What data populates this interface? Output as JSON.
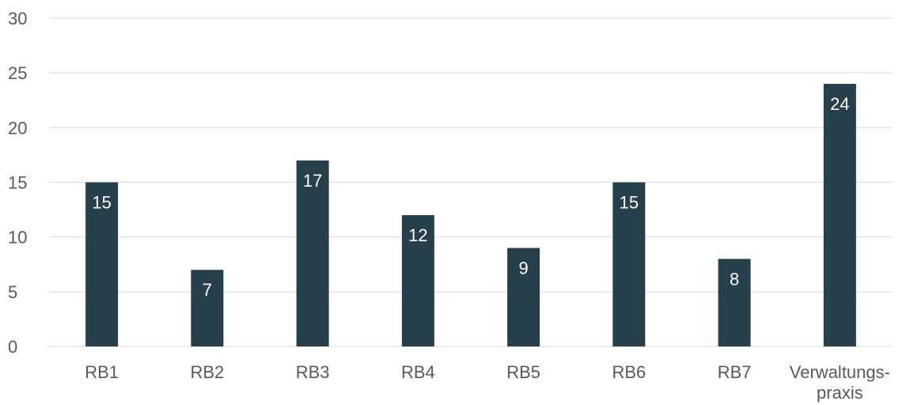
{
  "chart_data": {
    "type": "bar",
    "categories": [
      "RB1",
      "RB2",
      "RB3",
      "RB4",
      "RB5",
      "RB6",
      "RB7",
      "Verwaltungs-\npraxis"
    ],
    "values": [
      15,
      7,
      17,
      12,
      9,
      15,
      8,
      24
    ],
    "title": "",
    "xlabel": "",
    "ylabel": "",
    "ylim": [
      0,
      30
    ],
    "yticks": [
      0,
      5,
      10,
      15,
      20,
      25,
      30
    ],
    "grid": true,
    "legend": "none",
    "data_labels": true,
    "bar_color": "#263f4b"
  }
}
